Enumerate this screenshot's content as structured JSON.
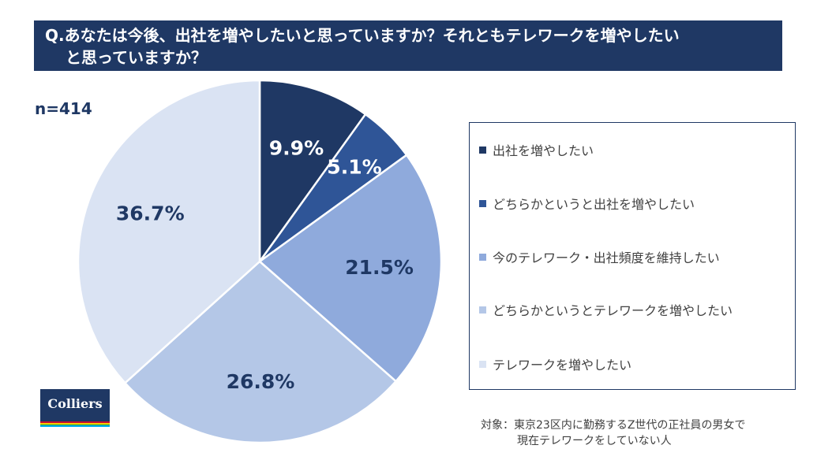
{
  "title": {
    "line1": "Q.あなたは今後、出社を増やしたいと思っていますか？それともテレワークを増やしたい",
    "line2": "と思っていますか？"
  },
  "sample_size": "n=414",
  "note": {
    "line1": "対象：東京23区内に勤務するZ世代の正社員の男女で",
    "line2": "現在テレワークをしていない人"
  },
  "logo": {
    "text": "Colliers",
    "stripe_colors": [
      "#c8102e",
      "#ffcd00",
      "#00a651",
      "#00aeef"
    ]
  },
  "chart_data": {
    "type": "pie",
    "start_angle_deg": 0,
    "direction": "clockwise",
    "slices": [
      {
        "label": "出社を増やしたい",
        "value": 9.9,
        "display": "9.9%",
        "color": "#1f3864",
        "label_color": "#ffffff"
      },
      {
        "label": "どちらかというと出社を増やしたい",
        "value": 5.1,
        "display": "5.1%",
        "color": "#2f5597",
        "label_color": "#ffffff"
      },
      {
        "label": "今のテレワーク・出社頻度を維持したい",
        "value": 21.5,
        "display": "21.5%",
        "color": "#8faadc",
        "label_color": "#1f3864"
      },
      {
        "label": "どちらかというとテレワークを増やしたい",
        "value": 26.8,
        "display": "26.8%",
        "color": "#b4c7e7",
        "label_color": "#1f3864"
      },
      {
        "label": "テレワークを増やしたい",
        "value": 36.7,
        "display": "36.7%",
        "color": "#dae3f3",
        "label_color": "#1f3864"
      }
    ],
    "legend_position": "right"
  }
}
